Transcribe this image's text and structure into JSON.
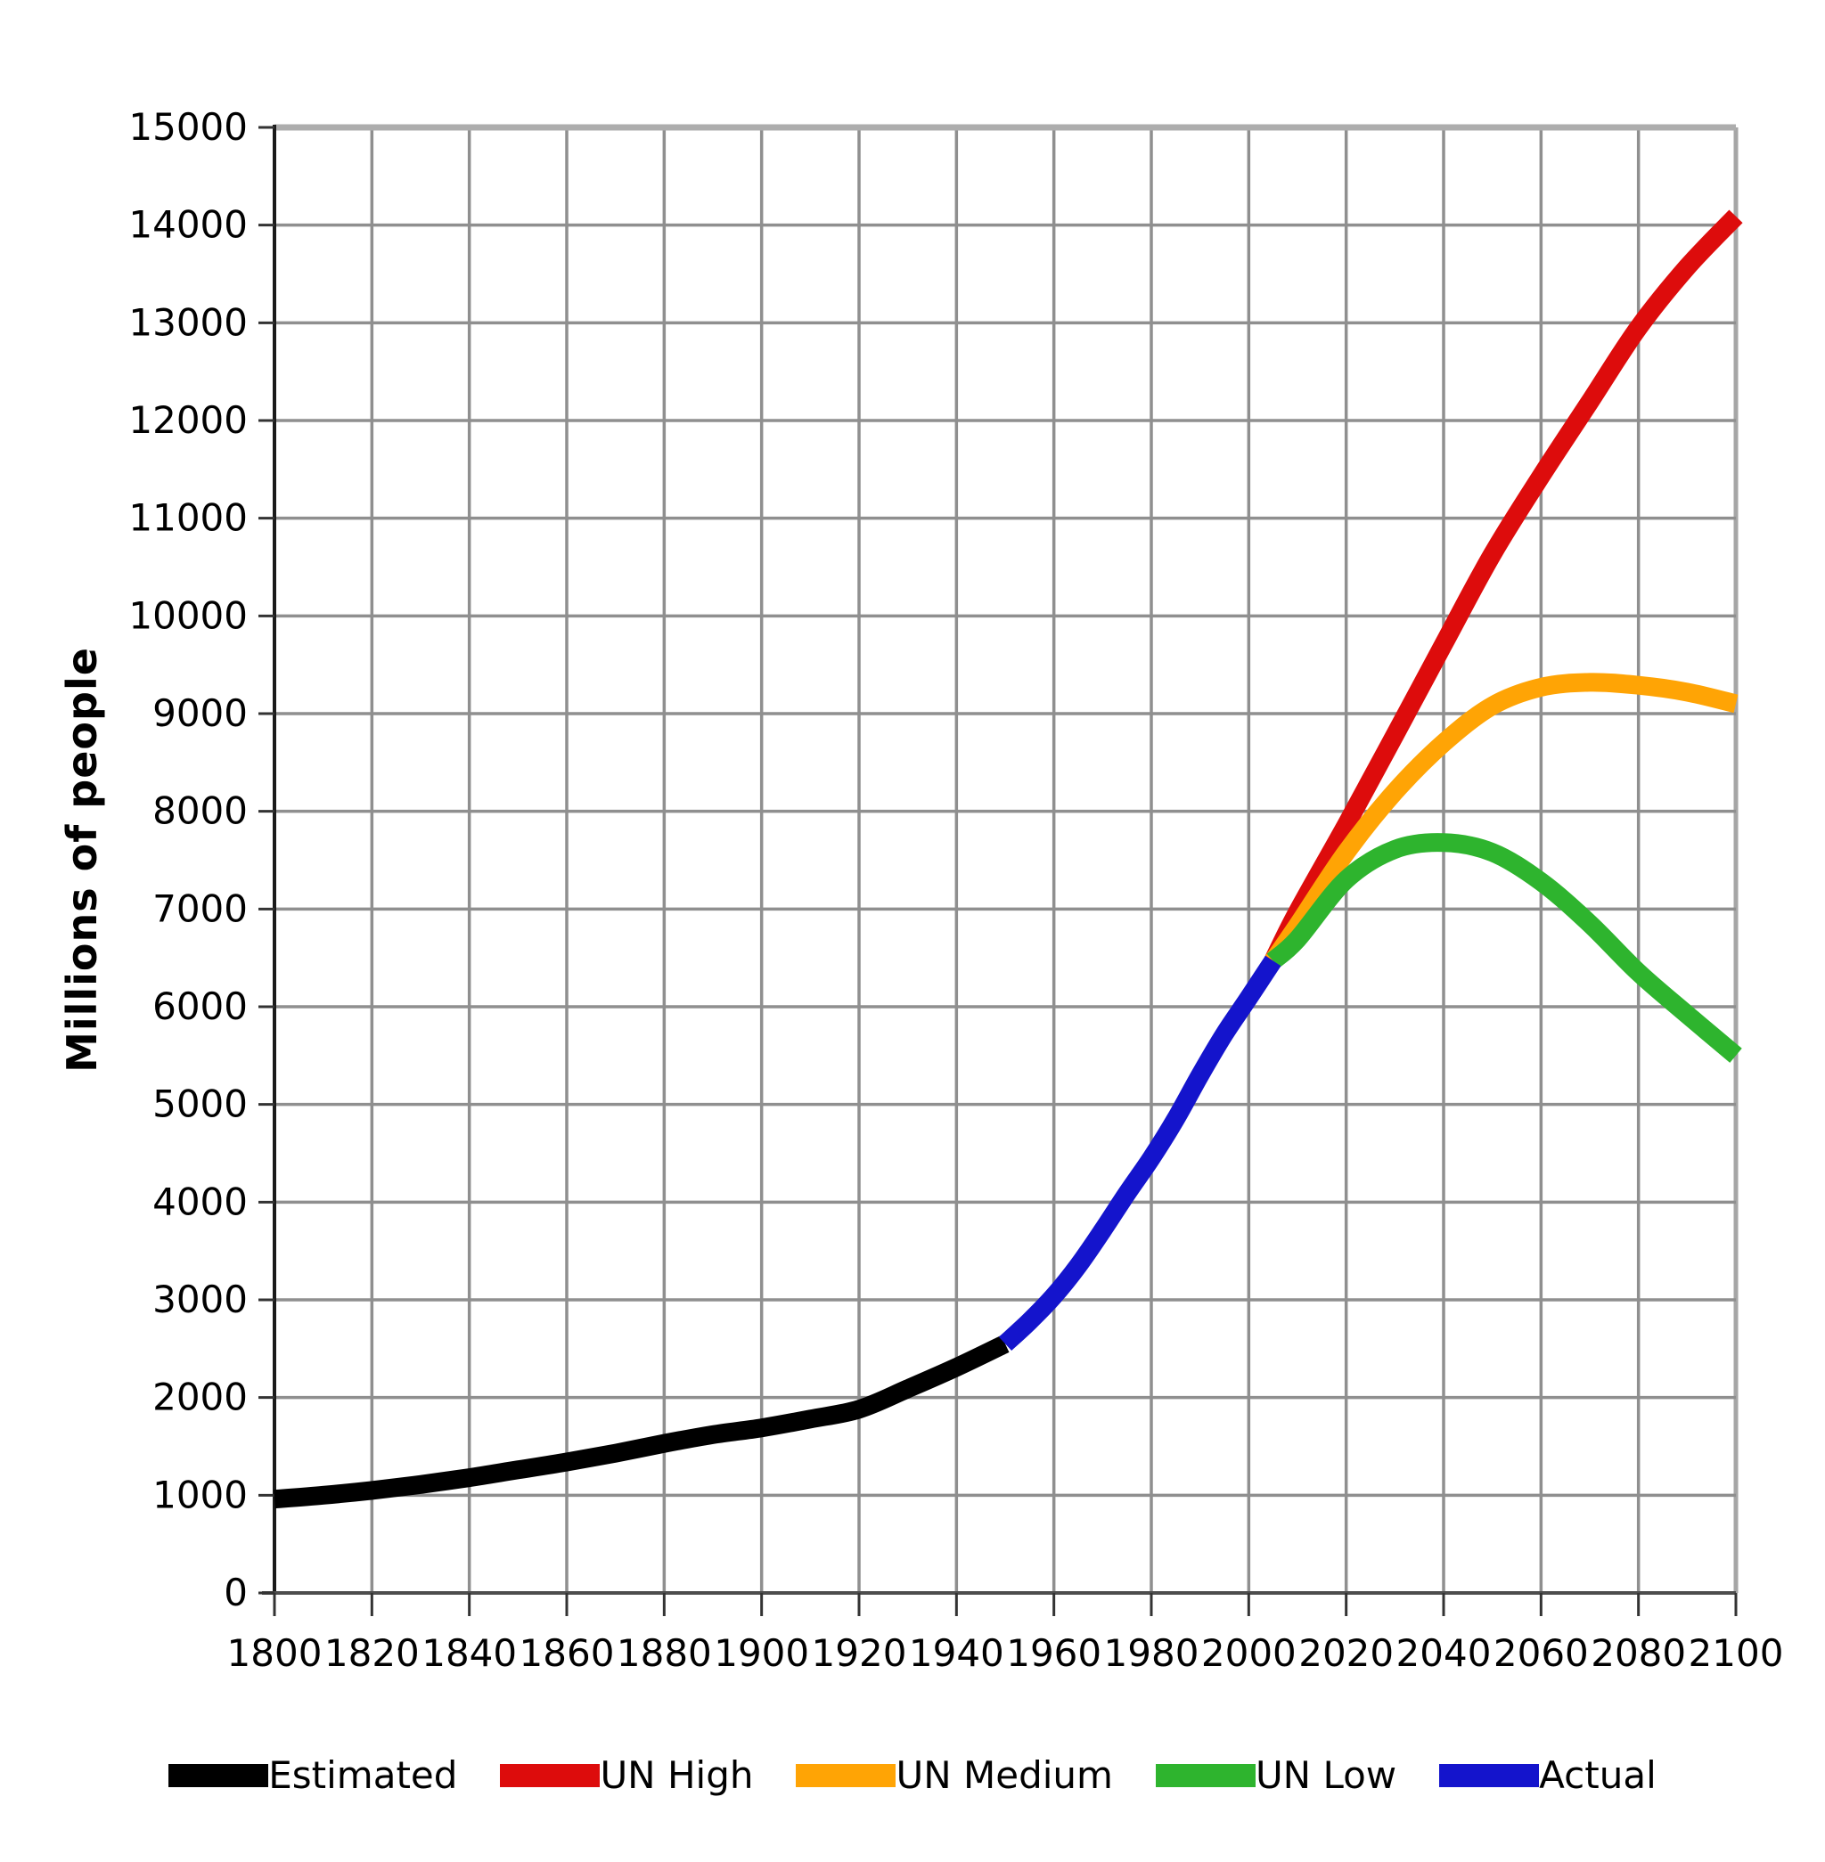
{
  "chart_data": {
    "type": "line",
    "title": "",
    "xlabel": "",
    "ylabel": "Millions of people",
    "x_range": [
      1800,
      2100
    ],
    "y_range": [
      0,
      15000
    ],
    "x_ticks": [
      1800,
      1820,
      1840,
      1860,
      1880,
      1900,
      1920,
      1940,
      1960,
      1980,
      2000,
      2020,
      2040,
      2060,
      2080,
      2100
    ],
    "y_ticks": [
      0,
      1000,
      2000,
      3000,
      4000,
      5000,
      6000,
      7000,
      8000,
      9000,
      10000,
      11000,
      12000,
      13000,
      14000,
      15000
    ],
    "grid": true,
    "legend_position": "bottom",
    "colors": {
      "grid": "#8F8F8F",
      "plot_border_top": "#ADADAD",
      "plot_border_right": "#A6A6A6",
      "axis_left": "#1A1A1A",
      "axis_bottom": "#4D4D4D",
      "tick": "#333333",
      "text": "#000000",
      "background": "#FFFFFF"
    },
    "series": [
      {
        "name": "Estimated",
        "color": "#000000",
        "x": [
          1800,
          1810,
          1820,
          1830,
          1840,
          1850,
          1860,
          1870,
          1880,
          1890,
          1900,
          1910,
          1920,
          1930,
          1940,
          1950
        ],
        "values": [
          960,
          1000,
          1050,
          1110,
          1180,
          1260,
          1340,
          1430,
          1530,
          1620,
          1690,
          1780,
          1880,
          2090,
          2310,
          2550
        ]
      },
      {
        "name": "UN High",
        "color": "#DD0C0C",
        "x": [
          2005,
          2010,
          2020,
          2030,
          2040,
          2050,
          2060,
          2070,
          2080,
          2090,
          2100
        ],
        "values": [
          6470,
          6970,
          7860,
          8780,
          9710,
          10630,
          11430,
          12190,
          12950,
          13570,
          14090
        ]
      },
      {
        "name": "UN Medium",
        "color": "#FFA405",
        "x": [
          2005,
          2010,
          2020,
          2030,
          2040,
          2050,
          2060,
          2070,
          2080,
          2090,
          2100
        ],
        "values": [
          6470,
          6830,
          7580,
          8200,
          8700,
          9080,
          9270,
          9320,
          9290,
          9220,
          9100
        ]
      },
      {
        "name": "UN Low",
        "color": "#2EB42E",
        "x": [
          2005,
          2010,
          2020,
          2030,
          2040,
          2050,
          2060,
          2070,
          2080,
          2090,
          2100
        ],
        "values": [
          6470,
          6690,
          7300,
          7610,
          7680,
          7580,
          7280,
          6850,
          6350,
          5920,
          5500
        ]
      },
      {
        "name": "Actual",
        "color": "#1414CC",
        "x": [
          1950,
          1955,
          1960,
          1965,
          1970,
          1975,
          1980,
          1985,
          1990,
          1995,
          2000,
          2005
        ],
        "values": [
          2550,
          2780,
          3040,
          3350,
          3710,
          4090,
          4450,
          4850,
          5300,
          5720,
          6090,
          6470
        ]
      }
    ]
  }
}
